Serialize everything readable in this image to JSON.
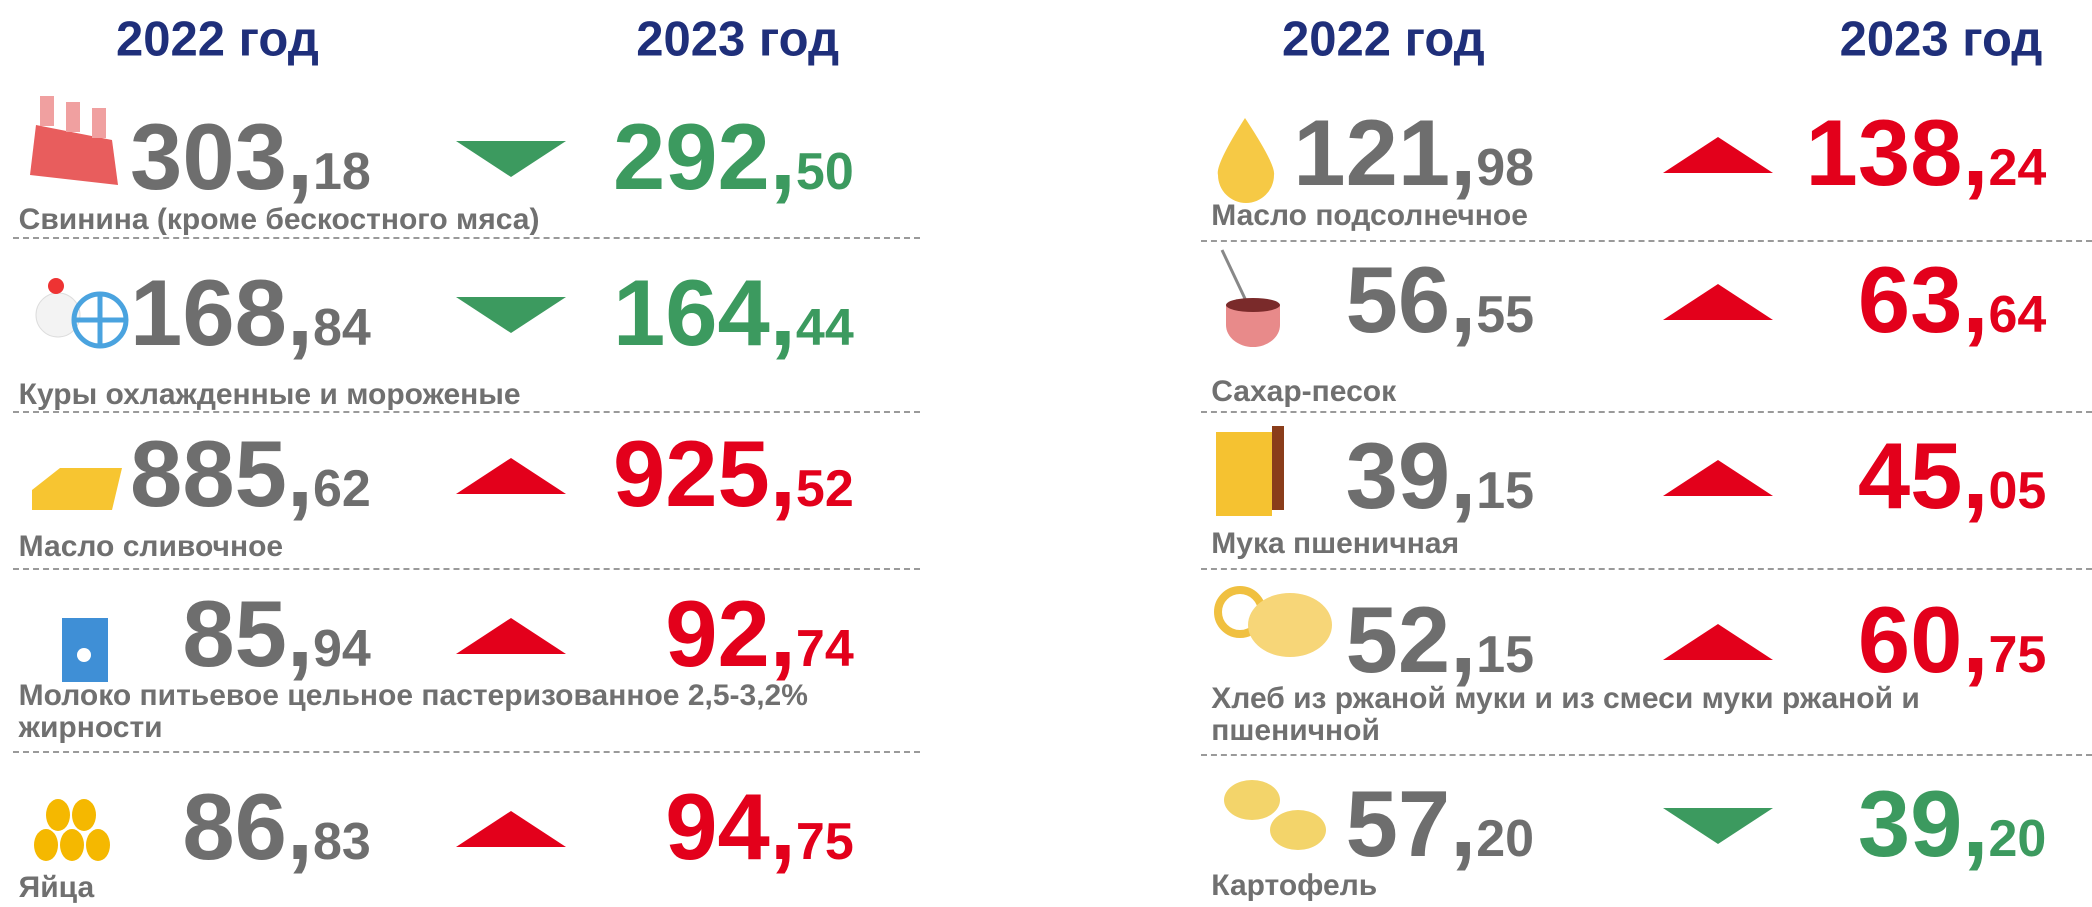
{
  "columns": [
    {
      "headers": [
        "2022 год",
        "2023 год"
      ],
      "items": [
        {
          "name": "Свинина (кроме бескостного мяса)",
          "price_2022": "303,18",
          "price_2023": "292,50",
          "trend": "down"
        },
        {
          "name": "Куры охлажденные и мороженые",
          "price_2022": "168,84",
          "price_2023": "164,44",
          "trend": "down"
        },
        {
          "name": "Масло сливочное",
          "price_2022": "885,62",
          "price_2023": "925,52",
          "trend": "up"
        },
        {
          "name": "Молоко  питьевое цельное пастеризованное 2,5-3,2% жирности",
          "price_2022": "85,94",
          "price_2023": "92,74",
          "trend": "up"
        },
        {
          "name": "Яйца",
          "price_2022": "86,83",
          "price_2023": "94,75",
          "trend": "up"
        }
      ]
    },
    {
      "headers": [
        "2022 год",
        "2023 год"
      ],
      "items": [
        {
          "name": "Масло подсолнечное",
          "price_2022": "121,98",
          "price_2023": "138,24",
          "trend": "up"
        },
        {
          "name": "Сахар-песок",
          "price_2022": "56,55",
          "price_2023": "63,64",
          "trend": "up"
        },
        {
          "name": "Мука пшеничная",
          "price_2022": "39,15",
          "price_2023": "45,05",
          "trend": "up"
        },
        {
          "name": "Хлеб из ржаной муки и из смеси муки ржаной и пшеничной",
          "price_2022": "52,15",
          "price_2023": "60,75",
          "trend": "up"
        },
        {
          "name": "Картофель",
          "price_2022": "57,20",
          "price_2023": "39,20",
          "trend": "down"
        }
      ]
    }
  ]
}
